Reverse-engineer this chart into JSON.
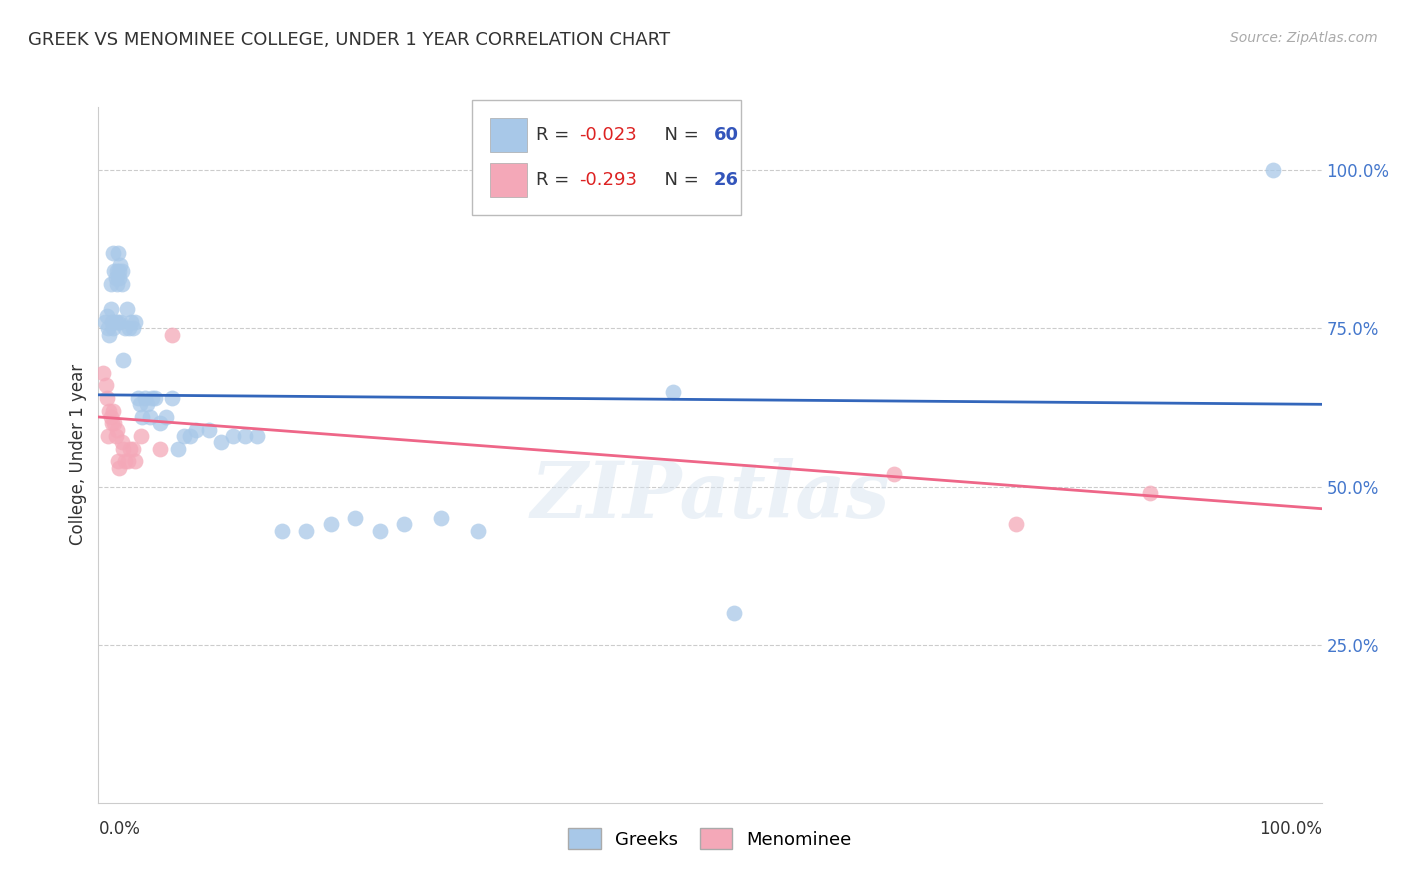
{
  "title": "GREEK VS MENOMINEE COLLEGE, UNDER 1 YEAR CORRELATION CHART",
  "source": "Source: ZipAtlas.com",
  "ylabel": "College, Under 1 year",
  "right_yticks": [
    "25.0%",
    "50.0%",
    "75.0%",
    "100.0%"
  ],
  "right_ytick_vals": [
    0.25,
    0.5,
    0.75,
    1.0
  ],
  "blue_color": "#a8c8e8",
  "pink_color": "#f4a8b8",
  "blue_line_color": "#3366bb",
  "pink_line_color": "#ee6688",
  "blue_scatter_x": [
    0.005,
    0.007,
    0.008,
    0.009,
    0.01,
    0.01,
    0.011,
    0.012,
    0.012,
    0.013,
    0.014,
    0.014,
    0.015,
    0.015,
    0.016,
    0.016,
    0.017,
    0.017,
    0.018,
    0.018,
    0.019,
    0.019,
    0.02,
    0.022,
    0.023,
    0.025,
    0.027,
    0.028,
    0.03,
    0.032,
    0.034,
    0.036,
    0.038,
    0.04,
    0.042,
    0.044,
    0.046,
    0.05,
    0.055,
    0.06,
    0.065,
    0.07,
    0.075,
    0.08,
    0.09,
    0.1,
    0.11,
    0.12,
    0.13,
    0.15,
    0.17,
    0.19,
    0.21,
    0.23,
    0.25,
    0.28,
    0.31,
    0.47,
    0.52,
    0.96
  ],
  "blue_scatter_y": [
    0.76,
    0.77,
    0.75,
    0.74,
    0.78,
    0.82,
    0.76,
    0.75,
    0.87,
    0.84,
    0.76,
    0.83,
    0.82,
    0.84,
    0.87,
    0.76,
    0.84,
    0.83,
    0.76,
    0.85,
    0.82,
    0.84,
    0.7,
    0.75,
    0.78,
    0.75,
    0.76,
    0.75,
    0.76,
    0.64,
    0.63,
    0.61,
    0.64,
    0.63,
    0.61,
    0.64,
    0.64,
    0.6,
    0.61,
    0.64,
    0.56,
    0.58,
    0.58,
    0.59,
    0.59,
    0.57,
    0.58,
    0.58,
    0.58,
    0.43,
    0.43,
    0.44,
    0.45,
    0.43,
    0.44,
    0.45,
    0.43,
    0.65,
    0.3,
    1.0
  ],
  "pink_scatter_x": [
    0.004,
    0.006,
    0.007,
    0.008,
    0.009,
    0.01,
    0.011,
    0.012,
    0.013,
    0.014,
    0.015,
    0.016,
    0.017,
    0.019,
    0.02,
    0.022,
    0.024,
    0.026,
    0.028,
    0.03,
    0.035,
    0.05,
    0.06,
    0.65,
    0.75,
    0.86
  ],
  "pink_scatter_y": [
    0.68,
    0.66,
    0.64,
    0.58,
    0.62,
    0.61,
    0.6,
    0.62,
    0.6,
    0.58,
    0.59,
    0.54,
    0.53,
    0.57,
    0.56,
    0.54,
    0.54,
    0.56,
    0.56,
    0.54,
    0.58,
    0.56,
    0.74,
    0.52,
    0.44,
    0.49
  ],
  "blue_trend_x": [
    0.0,
    1.0
  ],
  "blue_trend_y": [
    0.645,
    0.63
  ],
  "pink_trend_x": [
    0.0,
    1.0
  ],
  "pink_trend_y": [
    0.61,
    0.465
  ],
  "xlim": [
    0.0,
    1.0
  ],
  "ylim": [
    0.0,
    1.1
  ],
  "grid_color": "#cccccc",
  "background_color": "#ffffff",
  "watermark": "ZIPatlas"
}
